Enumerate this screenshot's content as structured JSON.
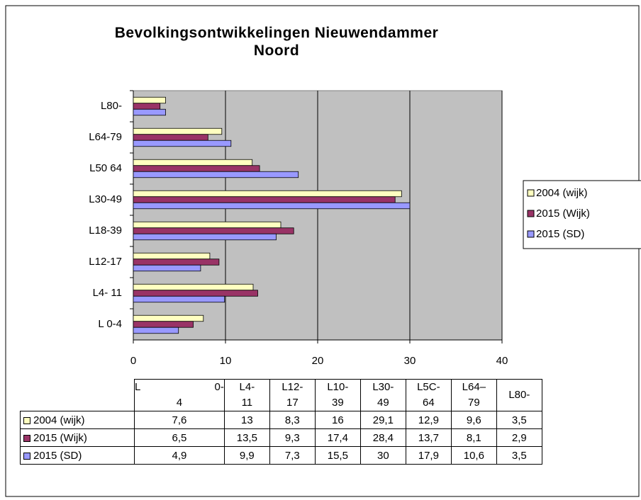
{
  "chart_data": {
    "type": "barh",
    "title": "Bevolkingsontwikkelingen Nieuwendammer Noord",
    "categories": [
      "L 0-4",
      "L4- 11",
      "L12-17",
      "L18-39",
      "L30-49",
      "L50 64",
      "L64-79",
      "L80-"
    ],
    "series": [
      {
        "name": "2004 (wijk)",
        "color": "#ffffc0",
        "values": [
          7.6,
          13,
          8.3,
          16,
          29.1,
          12.9,
          9.6,
          3.5
        ],
        "value_labels": [
          "7,6",
          "13",
          "8,3",
          "16",
          "29,1",
          "12,9",
          "9,6",
          "3,5"
        ]
      },
      {
        "name": "2015 (Wijk)",
        "color": "#993366",
        "values": [
          6.5,
          13.5,
          9.3,
          17.4,
          28.4,
          13.7,
          8.1,
          2.9
        ],
        "value_labels": [
          "6,5",
          "13,5",
          "9,3",
          "17,4",
          "28,4",
          "13,7",
          "8,1",
          "2,9"
        ]
      },
      {
        "name": "2015 (SD)",
        "color": "#9999ff",
        "values": [
          4.9,
          9.9,
          7.3,
          15.5,
          30,
          17.9,
          10.6,
          3.5
        ],
        "value_labels": [
          "4,9",
          "9,9",
          "7,3",
          "15,5",
          "30",
          "17,9",
          "10,6",
          "3,5"
        ]
      }
    ],
    "table_headers": [
      "L 0-4",
      "L4- 11",
      "L12- 17",
      "L10- 39",
      "L30- 49",
      "L5C- 64",
      "L64– 79",
      "L80-"
    ],
    "xlim": [
      0,
      40
    ],
    "xticks": [
      0,
      10,
      20,
      30,
      40
    ],
    "grid": true,
    "legend": "right"
  }
}
